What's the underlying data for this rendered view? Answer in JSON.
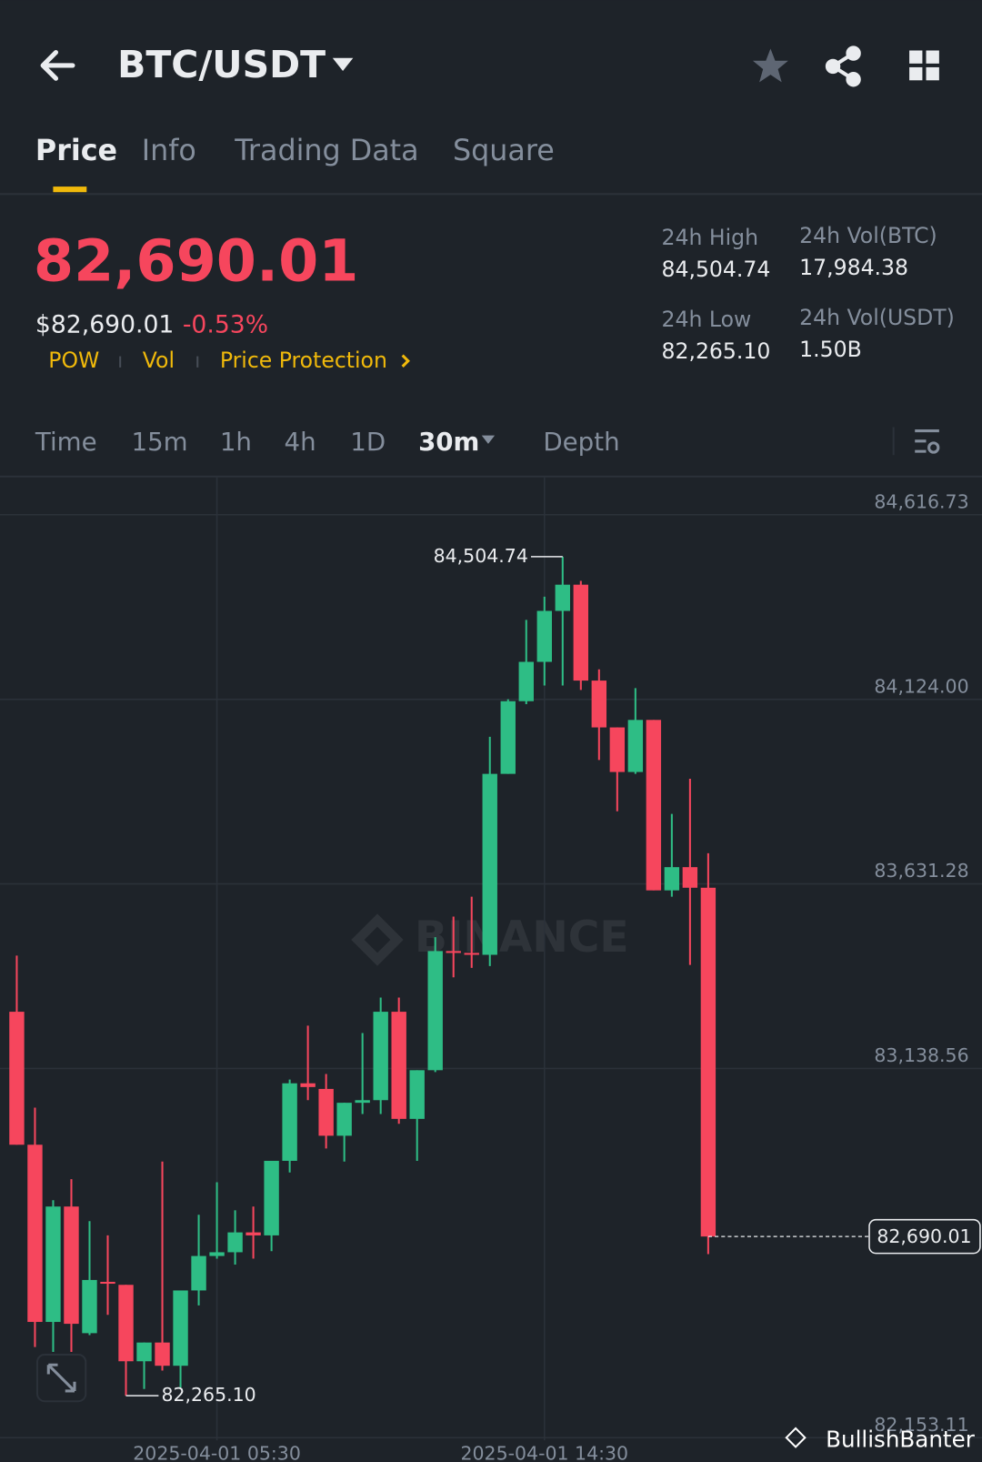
{
  "header": {
    "title": "BTC/USDT"
  },
  "tabs": [
    "Price",
    "Info",
    "Trading Data",
    "Square"
  ],
  "price": {
    "last": "82,690.01",
    "usd": "$82,690.01",
    "change": "-0.53%"
  },
  "tags": [
    "POW",
    "Vol",
    "Price Protection"
  ],
  "stats": [
    {
      "label": "24h High",
      "value": "84,504.74"
    },
    {
      "label": "24h Vol(BTC)",
      "value": "17,984.38"
    },
    {
      "label": "24h Low",
      "value": "82,265.10"
    },
    {
      "label": "24h Vol(USDT)",
      "value": "1.50B"
    }
  ],
  "intervals": [
    "Time",
    "15m",
    "1h",
    "4h",
    "1D",
    "30m",
    "Depth"
  ],
  "watermark": "BINANCE",
  "credit": "BullishBanter",
  "chart_data": {
    "type": "candlestick",
    "up_color": "#2ebd85",
    "down_color": "#f6465d",
    "ylim": [
      82145.7,
      84716.3
    ],
    "yticks": [
      {
        "value": 84616.73,
        "label": "84,616.73"
      },
      {
        "value": 84124.0,
        "label": "84,124.00"
      },
      {
        "value": 83631.28,
        "label": "83,631.28"
      },
      {
        "value": 83138.56,
        "label": "83,138.56"
      },
      {
        "value": 82153.11,
        "label": "82,153.11"
      }
    ],
    "grid": true,
    "categories": [
      null,
      null,
      null,
      null,
      null,
      null,
      null,
      null,
      null,
      null,
      null,
      "2025-04-01 05:30",
      null,
      null,
      null,
      null,
      null,
      null,
      null,
      null,
      null,
      null,
      null,
      null,
      null,
      null,
      null,
      null,
      null,
      "2025-04-01 14:30",
      null,
      null,
      null,
      null,
      null,
      null,
      null,
      null,
      null
    ],
    "open": [
      83290,
      82935,
      82462,
      82770,
      82432,
      82569,
      82561,
      82357,
      82407,
      82345,
      82546,
      82638,
      82648,
      82701,
      82693,
      82892,
      83099,
      83084,
      82959,
      83047,
      83054,
      83290,
      83004,
      83134,
      83452,
      83447,
      83442,
      83925,
      84119,
      84224,
      84360,
      84430,
      84174,
      84049,
      83930,
      84069,
      83614,
      83676,
      83621
    ],
    "high": [
      83440,
      83034,
      82787,
      82843,
      82731,
      82693,
      82561,
      82407,
      82890,
      82546,
      82748,
      82835,
      82760,
      82770,
      82892,
      83109,
      83253,
      83124,
      83047,
      83233,
      83328,
      83328,
      83134,
      83489,
      83544,
      83597,
      84024,
      84124,
      84336,
      84398,
      84504.74,
      84440,
      84204,
      84049,
      84154,
      84069,
      83818,
      83912,
      83713
    ],
    "low": [
      82935,
      82395,
      82382,
      82382,
      82427,
      82481,
      82265.1,
      82283,
      82332,
      82287,
      82506,
      82631,
      82615,
      82631,
      82651,
      82861,
      83054,
      82925,
      82890,
      83017,
      83017,
      82991,
      82892,
      83129,
      83382,
      83407,
      83412,
      83925,
      84111,
      84161,
      84161,
      84149,
      83962,
      83825,
      83925,
      83614,
      83597,
      83415,
      82643
    ],
    "close": [
      82935,
      82462,
      82770,
      82457,
      82574,
      82564,
      82357,
      82407,
      82345,
      82546,
      82638,
      82648,
      82701,
      82693,
      82892,
      83099,
      83089,
      82959,
      83047,
      83054,
      83290,
      83004,
      83134,
      83452,
      83447,
      83442,
      83925,
      84119,
      84224,
      84360,
      84430,
      84174,
      84049,
      83930,
      84069,
      83614,
      83676,
      83621,
      82690.01
    ],
    "annotations": [
      {
        "value": 84504.74,
        "label": "84,504.74"
      },
      {
        "value": 82265.1,
        "label": "82,265.10"
      },
      {
        "value": 82690.01,
        "label": "82,690.01"
      }
    ]
  }
}
